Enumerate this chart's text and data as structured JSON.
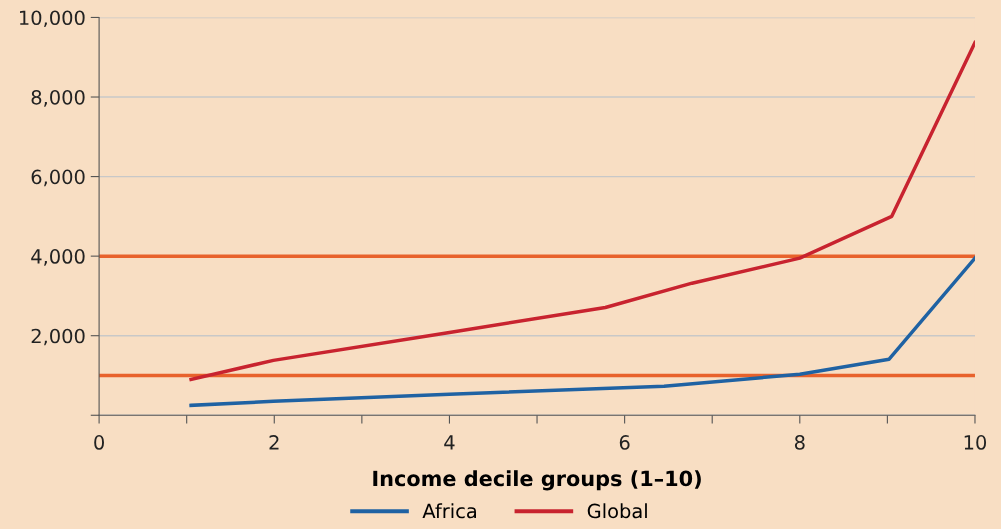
{
  "chart_data": {
    "type": "line",
    "xlabel": "Income decile groups (1–10)",
    "xlim": [
      0,
      10
    ],
    "xticks": [
      0,
      {
        "value": 1,
        "label": null
      },
      2,
      {
        "value": 3,
        "label": null
      },
      4,
      {
        "value": 5,
        "label": null
      },
      6,
      {
        "value": 7,
        "label": null
      },
      8,
      {
        "value": 9,
        "label": null
      },
      10
    ],
    "ylim": [
      0,
      10000
    ],
    "yticks": [
      {
        "value": 0,
        "label": null
      },
      {
        "value": 2000,
        "label": "2,000"
      },
      {
        "value": 4000,
        "label": "4,000"
      },
      {
        "value": 6000,
        "label": "6,000"
      },
      {
        "value": 8000,
        "label": "8,000"
      },
      {
        "value": 10000,
        "label": "10,000"
      }
    ],
    "grid": "y",
    "legend": "bottom",
    "marker": "none",
    "series": [
      {
        "name": "Africa",
        "color": "#1f62a3",
        "x": [
          1.05,
          1.99,
          4.0,
          6.45,
          8.0,
          9.02,
          10.0
        ],
        "values": [
          250,
          350,
          530,
          730,
          1030,
          1410,
          3950
        ]
      },
      {
        "name": "Global",
        "color": "#c8232f",
        "x": [
          1.05,
          1.99,
          4.0,
          5.78,
          6.77,
          8.0,
          9.05,
          10.0
        ],
        "values": [
          900,
          1380,
          2080,
          2710,
          3320,
          3950,
          5000,
          9370
        ]
      }
    ],
    "ref_lines": [
      {
        "axis": "y",
        "value": 4000,
        "color": "#e8622c"
      },
      {
        "axis": "y",
        "value": 1000,
        "color": "#e8622c"
      }
    ]
  }
}
